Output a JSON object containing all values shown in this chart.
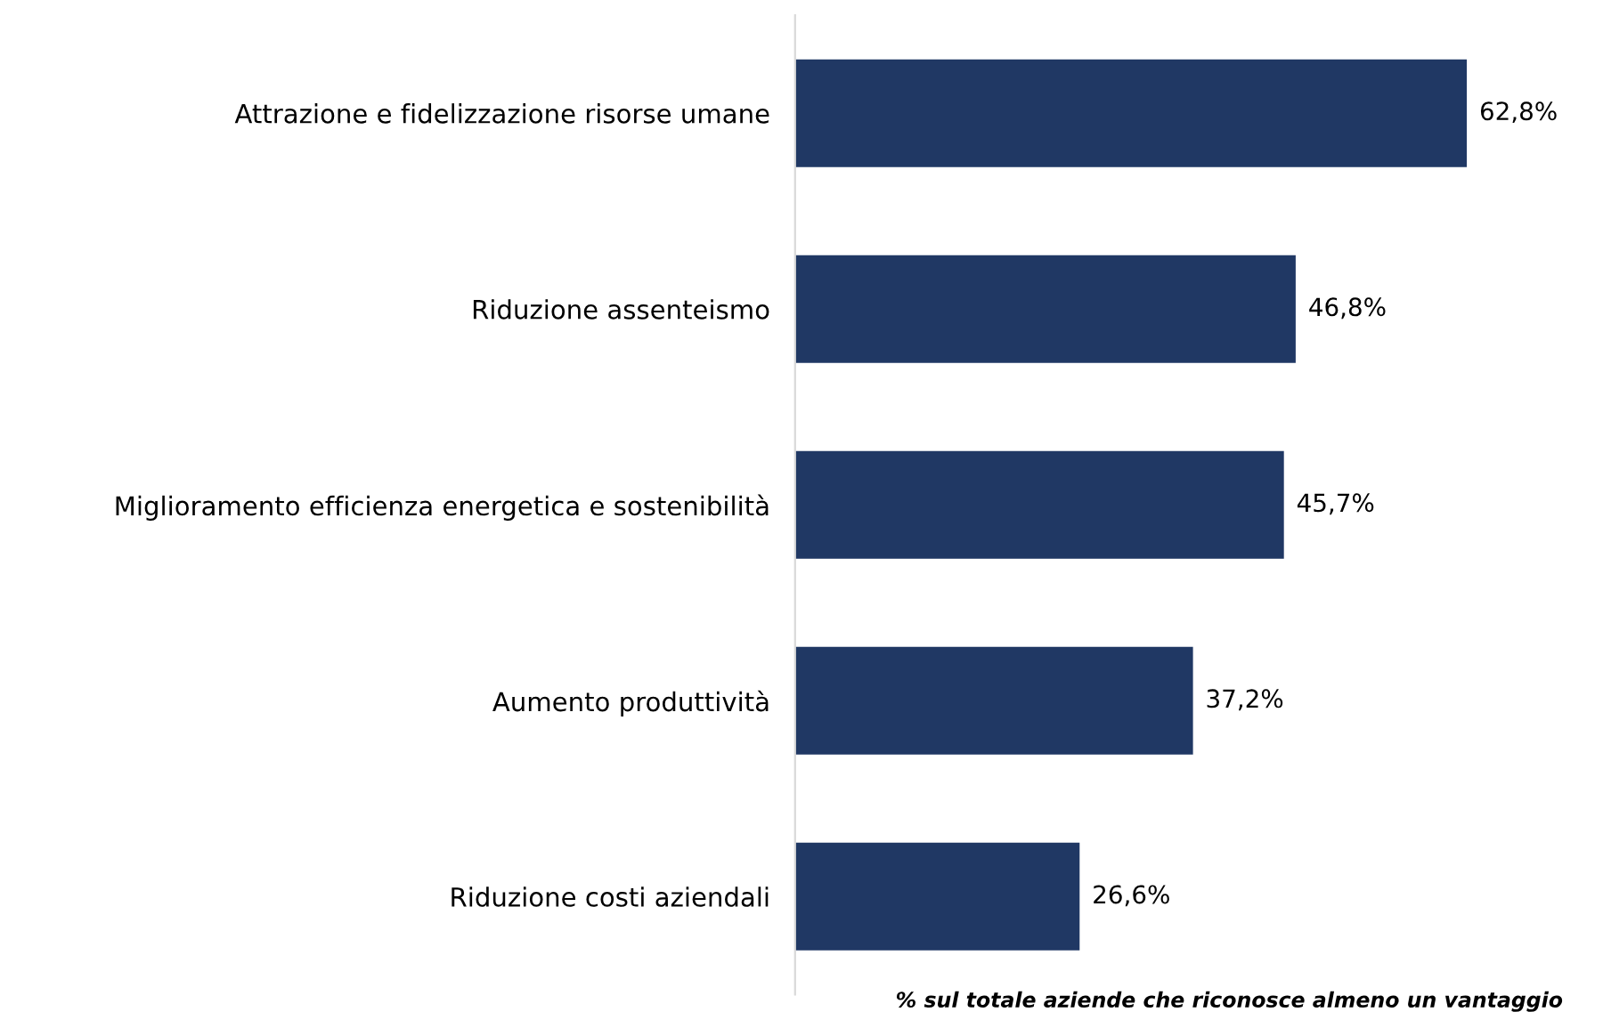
{
  "chart_data": {
    "type": "bar",
    "orientation": "horizontal",
    "categories": [
      "Attrazione e fidelizzazione risorse umane",
      "Riduzione assenteismo",
      "Miglioramento efficienza energetica e sostenibilità",
      "Aumento produttività",
      "Riduzione costi aziendali"
    ],
    "values": [
      62.8,
      46.8,
      45.7,
      37.2,
      26.6
    ],
    "value_labels": [
      "62,8%",
      "46,8%",
      "45,7%",
      "37,2%",
      "26,6%"
    ],
    "color": "#203864",
    "tick_labels": "y",
    "grid": false,
    "annotations": [
      "% sul totale aziende che riconosce almeno un vantaggio"
    ]
  }
}
